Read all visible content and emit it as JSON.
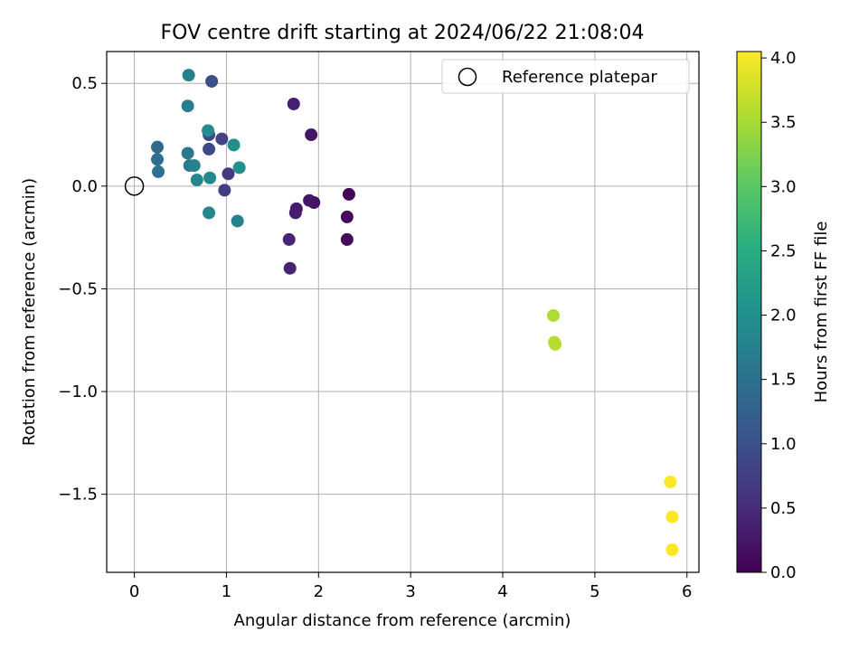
{
  "chart_data": {
    "type": "scatter",
    "title": "FOV centre drift starting at 2024/06/22 21:08:04",
    "xlabel": "Angular distance from reference (arcmin)",
    "ylabel": "Rotation from reference (arcmin)",
    "xlim": [
      -0.3,
      6.13
    ],
    "ylim": [
      -1.88,
      0.655
    ],
    "x_ticks": [
      0,
      1,
      2,
      3,
      4,
      5,
      6
    ],
    "y_ticks": [
      -1.5,
      -1.0,
      -0.5,
      0.0,
      0.5
    ],
    "x_tick_labels": [
      "0",
      "1",
      "2",
      "3",
      "4",
      "5",
      "6"
    ],
    "y_tick_labels": [
      "−1.5",
      "−1.0",
      "−0.5",
      "0.0",
      "0.5"
    ],
    "grid": true,
    "colormap": "viridis",
    "colorbar": {
      "label": "Hours from first FF file",
      "range": [
        0.0,
        4.05
      ],
      "ticks": [
        0.0,
        0.5,
        1.0,
        1.5,
        2.0,
        2.5,
        3.0,
        3.5,
        4.0
      ],
      "tick_labels": [
        "0.0",
        "0.5",
        "1.0",
        "1.5",
        "2.0",
        "2.5",
        "3.0",
        "3.5",
        "4.0"
      ]
    },
    "legend": {
      "position": "top-right",
      "entries": [
        {
          "label": "Reference platepar",
          "marker": "open-circle"
        }
      ]
    },
    "reference_point": {
      "x": 0.0,
      "y": 0.0
    },
    "points": [
      {
        "x": 2.33,
        "y": -0.04,
        "hours": 0.05
      },
      {
        "x": 2.31,
        "y": -0.15,
        "hours": 0.08
      },
      {
        "x": 2.31,
        "y": -0.26,
        "hours": 0.12
      },
      {
        "x": 1.95,
        "y": -0.08,
        "hours": 0.18
      },
      {
        "x": 1.9,
        "y": -0.07,
        "hours": 0.22
      },
      {
        "x": 1.92,
        "y": 0.25,
        "hours": 0.25
      },
      {
        "x": 1.76,
        "y": -0.11,
        "hours": 0.3
      },
      {
        "x": 1.75,
        "y": -0.13,
        "hours": 0.33
      },
      {
        "x": 1.73,
        "y": 0.4,
        "hours": 0.36
      },
      {
        "x": 1.68,
        "y": -0.26,
        "hours": 0.42
      },
      {
        "x": 1.69,
        "y": -0.4,
        "hours": 0.4
      },
      {
        "x": 1.02,
        "y": 0.06,
        "hours": 0.65
      },
      {
        "x": 0.98,
        "y": -0.02,
        "hours": 0.75
      },
      {
        "x": 0.95,
        "y": 0.23,
        "hours": 0.82
      },
      {
        "x": 0.81,
        "y": 0.25,
        "hours": 0.86
      },
      {
        "x": 0.81,
        "y": 0.18,
        "hours": 0.9
      },
      {
        "x": 0.84,
        "y": 0.51,
        "hours": 0.95
      },
      {
        "x": 0.25,
        "y": 0.19,
        "hours": 1.4
      },
      {
        "x": 0.25,
        "y": 0.13,
        "hours": 1.45
      },
      {
        "x": 0.26,
        "y": 0.07,
        "hours": 1.5
      },
      {
        "x": 0.58,
        "y": 0.16,
        "hours": 1.6
      },
      {
        "x": 0.6,
        "y": 0.1,
        "hours": 1.65
      },
      {
        "x": 0.58,
        "y": 0.39,
        "hours": 1.7
      },
      {
        "x": 0.59,
        "y": 0.54,
        "hours": 1.75
      },
      {
        "x": 0.65,
        "y": 0.1,
        "hours": 1.8
      },
      {
        "x": 0.68,
        "y": 0.03,
        "hours": 1.85
      },
      {
        "x": 0.82,
        "y": 0.04,
        "hours": 1.88
      },
      {
        "x": 0.81,
        "y": -0.13,
        "hours": 1.9
      },
      {
        "x": 0.8,
        "y": 0.27,
        "hours": 1.95
      },
      {
        "x": 1.12,
        "y": -0.17,
        "hours": 1.8
      },
      {
        "x": 1.08,
        "y": 0.2,
        "hours": 2.0
      },
      {
        "x": 1.14,
        "y": 0.09,
        "hours": 2.05
      },
      {
        "x": 4.55,
        "y": -0.63,
        "hours": 3.55
      },
      {
        "x": 4.56,
        "y": -0.76,
        "hours": 3.58
      },
      {
        "x": 4.57,
        "y": -0.77,
        "hours": 3.6
      },
      {
        "x": 5.82,
        "y": -1.44,
        "hours": 4.03
      },
      {
        "x": 5.84,
        "y": -1.61,
        "hours": 4.04
      },
      {
        "x": 5.84,
        "y": -1.77,
        "hours": 4.05
      }
    ]
  }
}
